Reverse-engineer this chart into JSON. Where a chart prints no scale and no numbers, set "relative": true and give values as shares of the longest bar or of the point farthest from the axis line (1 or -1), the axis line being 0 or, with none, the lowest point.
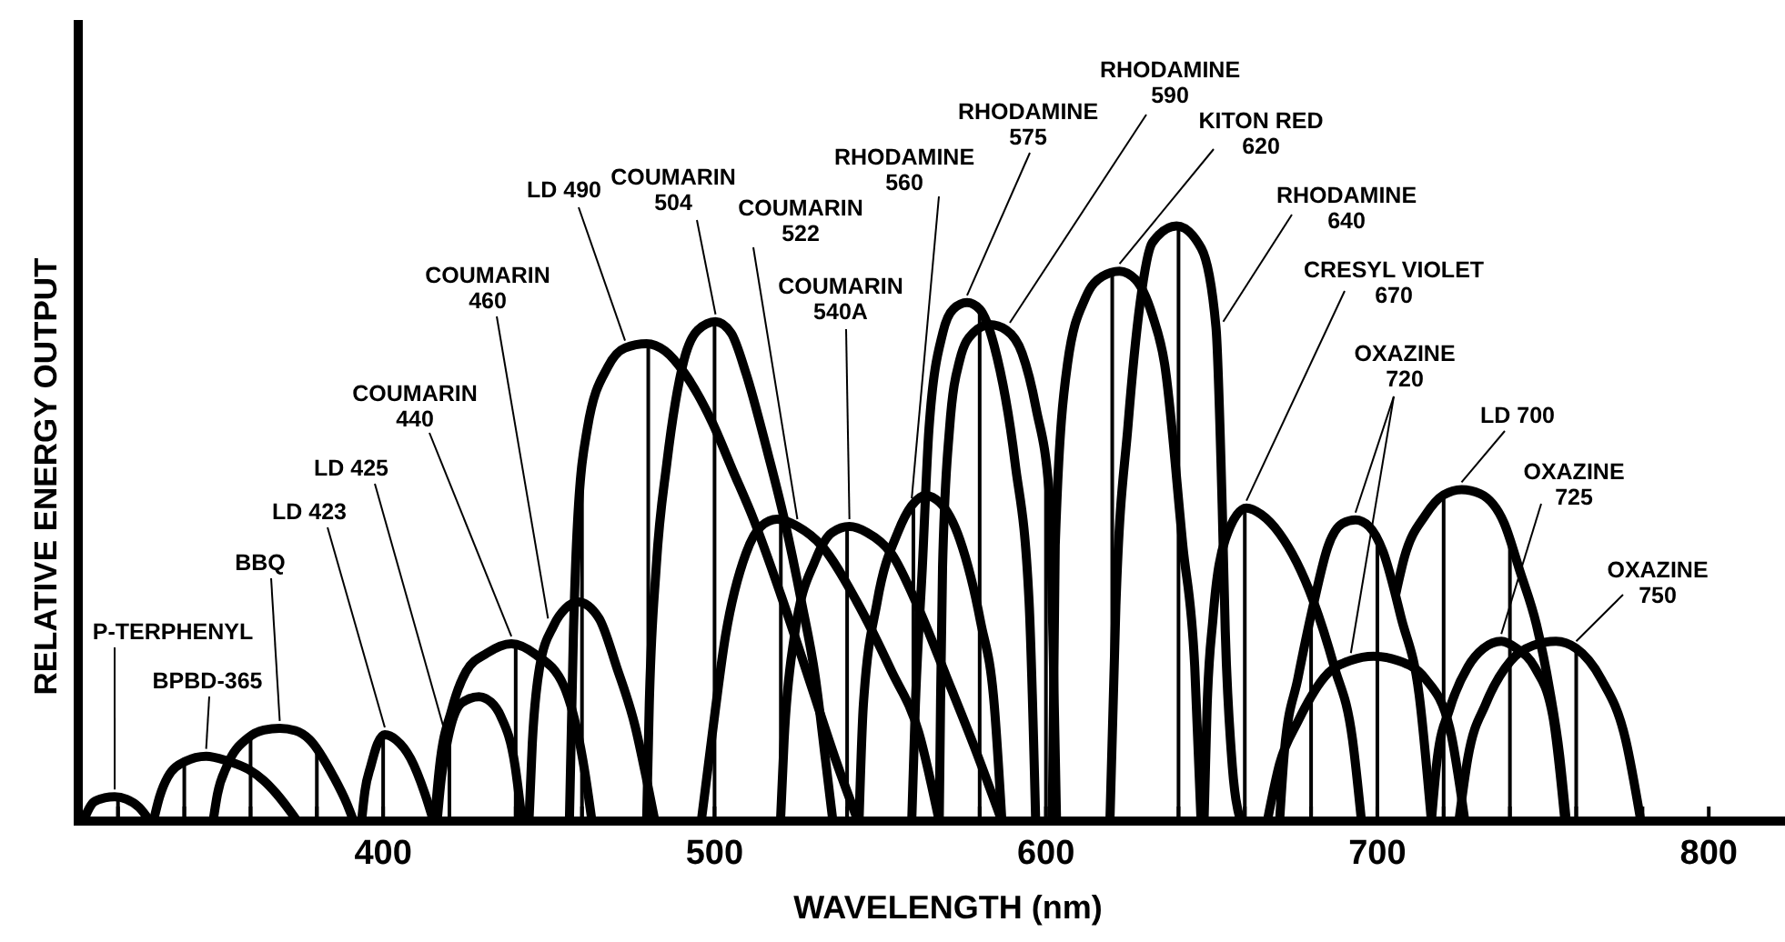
{
  "chart_data": {
    "type": "line",
    "relative": true,
    "xlabel": "WAVELENGTH (nm)",
    "ylabel": "RELATIVE ENERGY OUTPUT",
    "xlim": [
      308,
      823
    ],
    "xticks": [
      {
        "value": 320,
        "label": null
      },
      {
        "value": 340,
        "label": null
      },
      {
        "value": 360,
        "label": null
      },
      {
        "value": 380,
        "label": null
      },
      400,
      {
        "value": 420,
        "label": null
      },
      {
        "value": 440,
        "label": null
      },
      {
        "value": 460,
        "label": null
      },
      {
        "value": 480,
        "label": null
      },
      500,
      {
        "value": 520,
        "label": null
      },
      {
        "value": 540,
        "label": null
      },
      {
        "value": 560,
        "label": null
      },
      {
        "value": 580,
        "label": null
      },
      600,
      {
        "value": 620,
        "label": null
      },
      {
        "value": 640,
        "label": null
      },
      {
        "value": 660,
        "label": null
      },
      {
        "value": 680,
        "label": null
      },
      700,
      {
        "value": 720,
        "label": null
      },
      {
        "value": 740,
        "label": null
      },
      {
        "value": 760,
        "label": null
      },
      {
        "value": 780,
        "label": null
      },
      800
    ],
    "grid": "x",
    "series": [
      {
        "name": "P-TERPHENYL",
        "color": "#000000",
        "x": [
          309.6,
          310.8,
          312.7,
          316,
          319,
          322.5,
          326.4,
          329.6
        ],
        "values": [
          0,
          0.016,
          0.032,
          0.039,
          0.041,
          0.037,
          0.023,
          0
        ]
      },
      {
        "name": "BPBD-365",
        "color": "#000000",
        "x": [
          330.7,
          332.5,
          335,
          340.2,
          346.6,
          353,
          359.3,
          364,
          367.8,
          371.5,
          374.1
        ],
        "values": [
          0,
          0.04,
          0.074,
          0.1,
          0.109,
          0.101,
          0.087,
          0.068,
          0.046,
          0.02,
          0
        ]
      },
      {
        "name": "BBQ",
        "color": "#000000",
        "x": [
          348.7,
          350,
          352.9,
          359.3,
          364,
          368.8,
          373.5,
          377.8,
          385.1,
          389,
          391.1
        ],
        "values": [
          0,
          0.045,
          0.093,
          0.14,
          0.153,
          0.156,
          0.152,
          0.137,
          0.074,
          0.03,
          0
        ]
      },
      {
        "name": "LD 423",
        "color": "#000000",
        "x": [
          393.5,
          394.5,
          396.3,
          398.3,
          400.5,
          404,
          408.3,
          412.6,
          415.2
        ],
        "values": [
          0,
          0.05,
          0.093,
          0.13,
          0.145,
          0.136,
          0.105,
          0.046,
          0
        ]
      },
      {
        "name": "LD 425",
        "color": "#000000",
        "x": [
          416.3,
          417.5,
          419.6,
          423.8,
          428.9,
          432.5,
          435.5,
          439.8,
          441.9
        ],
        "values": [
          0,
          0.07,
          0.14,
          0.199,
          0.209,
          0.2,
          0.176,
          0.093,
          0
        ]
      },
      {
        "name": "COUMARIN 440",
        "color": "#000000",
        "x": [
          415.5,
          417,
          420.7,
          425,
          431.3,
          438.7,
          446,
          454.6,
          460.9,
          463
        ],
        "values": [
          0,
          0.09,
          0.187,
          0.251,
          0.282,
          0.298,
          0.28,
          0.226,
          0.081,
          0
        ]
      },
      {
        "name": "COUMARIN 460",
        "color": "#000000",
        "x": [
          444,
          445,
          447.2,
          451.4,
          455,
          458.8,
          465.1,
          470.5,
          476,
          479.5,
          482
        ],
        "values": [
          0,
          0.13,
          0.258,
          0.328,
          0.357,
          0.368,
          0.341,
          0.258,
          0.16,
          0.07,
          0
        ]
      },
      {
        "name": "LD 490",
        "color": "#000000",
        "x": [
          456.2,
          457.4,
          458.5,
          461.6,
          467.8,
          473,
          479.5,
          485,
          491,
          499.2,
          505.5,
          511.7,
          520,
          528.3,
          536.6,
          543.3
        ],
        "values": [
          0,
          0.311,
          0.485,
          0.659,
          0.763,
          0.795,
          0.802,
          0.79,
          0.752,
          0.671,
          0.589,
          0.508,
          0.38,
          0.242,
          0.102,
          0
        ]
      },
      {
        "name": "COUMARIN 504",
        "color": "#000000",
        "x": [
          479.5,
          480.3,
          482.4,
          485.6,
          490.8,
          495,
          500.3,
          505,
          509.5,
          515.8,
          521,
          526.2,
          530.4,
          533.5,
          535.7
        ],
        "values": [
          0,
          0.195,
          0.427,
          0.601,
          0.775,
          0.825,
          0.839,
          0.82,
          0.752,
          0.624,
          0.508,
          0.369,
          0.242,
          0.102,
          0
        ]
      },
      {
        "name": "COUMARIN 522",
        "color": "#000000",
        "x": [
          496,
          499.1,
          503.3,
          509.5,
          514,
          518.9,
          525,
          532.4,
          542.9,
          553.3,
          561.6,
          567.8
        ],
        "values": [
          0,
          0.137,
          0.311,
          0.45,
          0.495,
          0.507,
          0.495,
          0.462,
          0.369,
          0.253,
          0.149,
          0
        ]
      },
      {
        "name": "COUMARIN 540A",
        "color": "#000000",
        "x": [
          519.9,
          521,
          524.1,
          530.4,
          535.5,
          540.7,
          546,
          553.3,
          561.6,
          570,
          578.3,
          586.7
        ],
        "values": [
          0,
          0.137,
          0.311,
          0.438,
          0.485,
          0.495,
          0.485,
          0.45,
          0.357,
          0.242,
          0.126,
          0
        ]
      },
      {
        "name": "RHODAMINE 560",
        "color": "#000000",
        "x": [
          543.6,
          544.9,
          549.1,
          555.3,
          559.5,
          563.6,
          568,
          574,
          580.3,
          584.4,
          586.7
        ],
        "values": [
          0,
          0.195,
          0.369,
          0.485,
          0.53,
          0.547,
          0.535,
          0.473,
          0.334,
          0.195,
          0
        ]
      },
      {
        "name": "RHODAMINE 575",
        "color": "#000000",
        "x": [
          559.5,
          560.6,
          562.7,
          564.7,
          568.9,
          572,
          576.2,
          580,
          584.4,
          590.7,
          594.9,
          596.9
        ],
        "values": [
          0,
          0.195,
          0.427,
          0.659,
          0.821,
          0.86,
          0.871,
          0.86,
          0.798,
          0.601,
          0.369,
          0
        ]
      },
      {
        "name": "RHODAMINE 590",
        "color": "#000000",
        "x": [
          567.8,
          568.2,
          568.8,
          570.9,
          574,
          578,
          583.1,
          588,
          592.8,
          597,
          601.1,
          602.1,
          603.2
        ],
        "values": [
          0,
          0.2,
          0.427,
          0.659,
          0.775,
          0.82,
          0.834,
          0.825,
          0.786,
          0.694,
          0.543,
          0.311,
          0
        ]
      },
      {
        "name": "KITON RED 620",
        "color": "#000000",
        "x": [
          601.9,
          602.8,
          606.5,
          612,
          617,
          622.2,
          627,
          632.1,
          635.8,
          641.3,
          644.9,
          646.8
        ],
        "values": [
          0,
          0.463,
          0.768,
          0.88,
          0.915,
          0.924,
          0.91,
          0.85,
          0.768,
          0.463,
          0.259,
          0
        ]
      },
      {
        "name": "RHODAMINE 640",
        "color": "#000000",
        "x": [
          619.3,
          621.1,
          624.8,
          628.4,
          632.1,
          639.4,
          646.9,
          651.3,
          653.2,
          654.1,
          655.9,
          658.7
        ],
        "values": [
          0,
          0.361,
          0.667,
          0.87,
          0.972,
          1,
          0.962,
          0.83,
          0.524,
          0.32,
          0.117,
          0
        ]
      },
      {
        "name": "CRESYL VIOLET 670",
        "color": "#000000",
        "x": [
          647.7,
          648.6,
          650.4,
          654.1,
          660.5,
          665,
          670.5,
          680.6,
          687,
          692.5,
          695.2
        ],
        "values": [
          0,
          0.188,
          0.341,
          0.473,
          0.526,
          0.515,
          0.483,
          0.371,
          0.259,
          0.137,
          0
        ]
      },
      {
        "name": "OXAZINE 720",
        "color": "#000000",
        "x": [
          670.5,
          672,
          676,
          680.6,
          685.2,
          689.5,
          693.4,
          697.5,
          701.7,
          707.2,
          712.7,
          716.3,
          null,
          666.8,
          670.5,
          676,
          685.2,
          692,
          698.9,
          706,
          714.5,
          721.8,
          726.4
        ],
        "values": [
          0,
          0.12,
          0.239,
          0.361,
          0.463,
          0.5,
          0.506,
          0.495,
          0.453,
          0.341,
          0.208,
          0,
          null,
          0,
          0.096,
          0.167,
          0.249,
          0.27,
          0.277,
          0.27,
          0.239,
          0.157,
          0
        ]
      },
      {
        "name": "LD 700",
        "color": "#000000",
        "x": [
          705.5,
          708.1,
          714.5,
          720,
          725.4,
          731,
          738.3,
          743,
          748,
          752,
          755,
          757
        ],
        "values": [
          0.38,
          0.442,
          0.514,
          0.548,
          0.557,
          0.55,
          0.5,
          0.42,
          0.33,
          0.22,
          0.11,
          0
        ]
      },
      {
        "name": "OXAZINE 725",
        "color": "#000000",
        "x": [
          716.3,
          718.1,
          721.8,
          727.3,
          732,
          737.4,
          742,
          747.4,
          752.9,
          756.6
        ],
        "values": [
          0,
          0.106,
          0.188,
          0.259,
          0.29,
          0.302,
          0.29,
          0.259,
          0.178,
          0
        ]
      },
      {
        "name": "OXAZINE 750",
        "color": "#000000",
        "x": [
          724.6,
          727.3,
          732.8,
          740.2,
          747,
          753.9,
          760,
          767.5,
          774.9,
          779.5
        ],
        "values": [
          0,
          0.106,
          0.198,
          0.269,
          0.295,
          0.302,
          0.29,
          0.239,
          0.137,
          0
        ]
      }
    ]
  }
}
